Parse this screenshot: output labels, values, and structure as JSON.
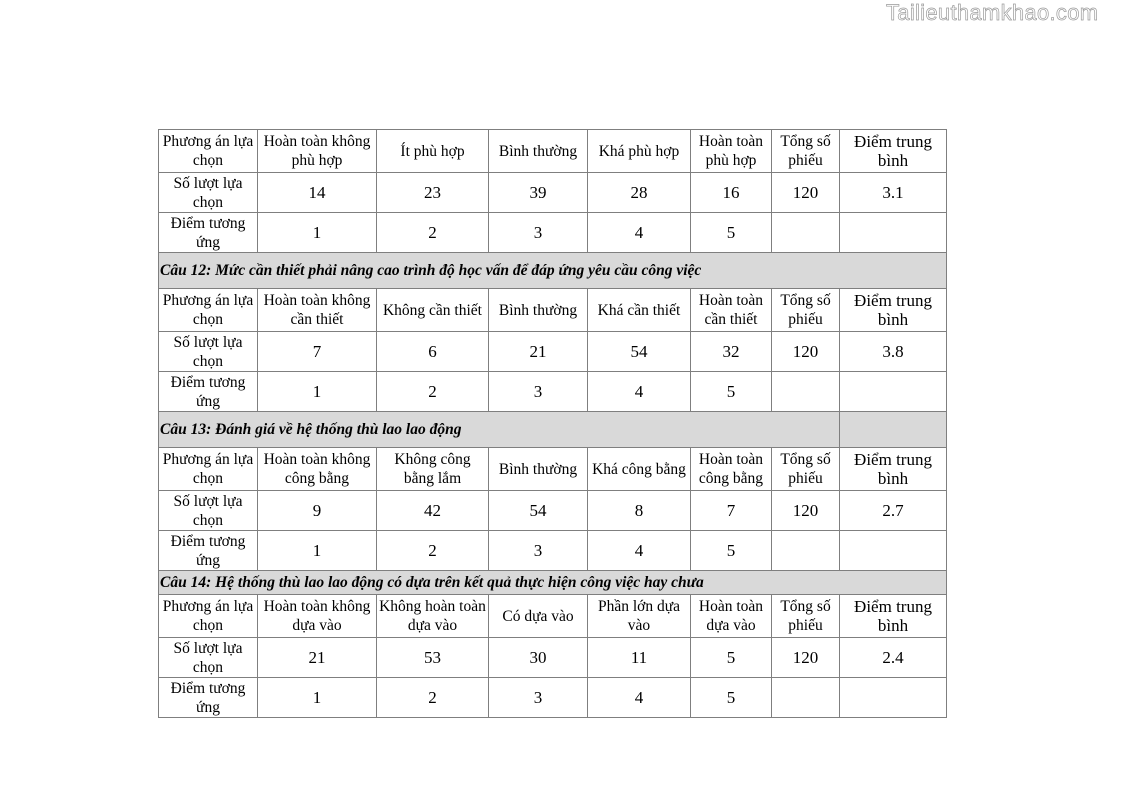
{
  "watermark": "Tailieuthamkhao.com",
  "row_labels": {
    "option": "Phương án lựa chọn",
    "count": "Số lượt lựa chọn",
    "score": "Điểm tương ứng"
  },
  "common_headers": {
    "total": "Tổng số phiếu",
    "average": "Điểm trung bình"
  },
  "sections": [
    {
      "title": "",
      "options": [
        "Hoàn toàn không phù hợp",
        "Ít phù hợp",
        "Bình thường",
        "Khá phù hợp",
        "Hoàn toàn phù hợp"
      ],
      "counts": [
        "14",
        "23",
        "39",
        "28",
        "16"
      ],
      "total": "120",
      "average": "3.1",
      "scores": [
        "1",
        "2",
        "3",
        "4",
        "5"
      ]
    },
    {
      "title": "Câu 12: Mức cần thiết phải nâng cao trình độ học vấn để đáp ứng yêu cầu công việc",
      "options": [
        "Hoàn toàn không cần thiết",
        "Không cần thiết",
        "Bình thường",
        "Khá cần thiết",
        "Hoàn toàn cần thiết"
      ],
      "counts": [
        "7",
        "6",
        "21",
        "54",
        "32"
      ],
      "total": "120",
      "average": "3.8",
      "scores": [
        "1",
        "2",
        "3",
        "4",
        "5"
      ]
    },
    {
      "title": "Câu 13: Đánh giá về hệ thống thù lao lao động",
      "options": [
        "Hoàn toàn không công bằng",
        "Không công bằng lắm",
        "Bình thường",
        "Khá công bằng",
        "Hoàn toàn công bằng"
      ],
      "counts": [
        "9",
        "42",
        "54",
        "8",
        "7"
      ],
      "total": "120",
      "average": "2.7",
      "scores": [
        "1",
        "2",
        "3",
        "4",
        "5"
      ]
    },
    {
      "title": "Câu 14: Hệ thống thù lao lao động có dựa trên kết quả thực hiện công việc hay chưa",
      "options": [
        "Hoàn toàn không dựa vào",
        "Không hoàn toàn dựa vào",
        "Có dựa vào",
        "Phần lớn dựa vào",
        "Hoàn toàn dựa vào"
      ],
      "counts": [
        "21",
        "53",
        "30",
        "11",
        "5"
      ],
      "total": "120",
      "average": "2.4",
      "scores": [
        "1",
        "2",
        "3",
        "4",
        "5"
      ]
    }
  ]
}
